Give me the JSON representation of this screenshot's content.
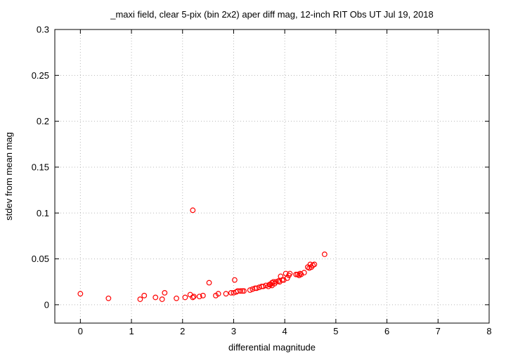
{
  "chart_data": {
    "type": "scatter",
    "title": "_maxi field, clear 5-pix (bin 2x2) aper diff mag,  12-inch RIT Obs UT Jul 19, 2018",
    "xlabel": "differential magnitude",
    "ylabel": "stdev from mean mag",
    "xlim": [
      -0.5,
      8
    ],
    "ylim": [
      -0.02,
      0.3
    ],
    "x_ticks": [
      "0",
      "1",
      "2",
      "3",
      "4",
      "5",
      "6",
      "7",
      "8"
    ],
    "y_ticks": [
      "0",
      "0.05",
      "0.1",
      "0.15",
      "0.2",
      "0.25",
      "0.3"
    ],
    "grid": true,
    "marker": "open-circle",
    "color": "#ff0000",
    "series": [
      {
        "x": [
          0.0,
          0.55,
          1.17,
          1.25,
          1.47,
          1.6,
          1.65,
          1.88,
          2.05,
          2.15,
          2.2,
          2.2,
          2.22,
          2.33,
          2.4,
          2.52,
          2.65,
          2.7,
          2.85,
          2.95,
          3.0,
          3.02,
          3.05,
          3.08,
          3.13,
          3.17,
          3.2,
          3.32,
          3.37,
          3.42,
          3.45,
          3.5,
          3.55,
          3.58,
          3.63,
          3.68,
          3.7,
          3.72,
          3.75,
          3.75,
          3.78,
          3.8,
          3.83,
          3.88,
          3.9,
          3.92,
          3.95,
          3.98,
          4.02,
          4.05,
          4.08,
          4.1,
          4.22,
          4.25,
          4.28,
          4.3,
          4.32,
          4.38,
          4.45,
          4.48,
          4.5,
          4.52,
          4.55,
          4.58,
          4.78
        ],
        "y": [
          0.012,
          0.007,
          0.006,
          0.01,
          0.008,
          0.006,
          0.013,
          0.007,
          0.008,
          0.011,
          0.103,
          0.008,
          0.009,
          0.009,
          0.01,
          0.024,
          0.01,
          0.012,
          0.012,
          0.013,
          0.013,
          0.027,
          0.014,
          0.015,
          0.015,
          0.015,
          0.015,
          0.016,
          0.017,
          0.018,
          0.018,
          0.019,
          0.02,
          0.02,
          0.021,
          0.02,
          0.022,
          0.022,
          0.021,
          0.024,
          0.025,
          0.023,
          0.025,
          0.026,
          0.025,
          0.031,
          0.027,
          0.027,
          0.034,
          0.029,
          0.032,
          0.034,
          0.033,
          0.033,
          0.032,
          0.034,
          0.033,
          0.035,
          0.041,
          0.04,
          0.044,
          0.041,
          0.043,
          0.044,
          0.055
        ]
      }
    ]
  }
}
